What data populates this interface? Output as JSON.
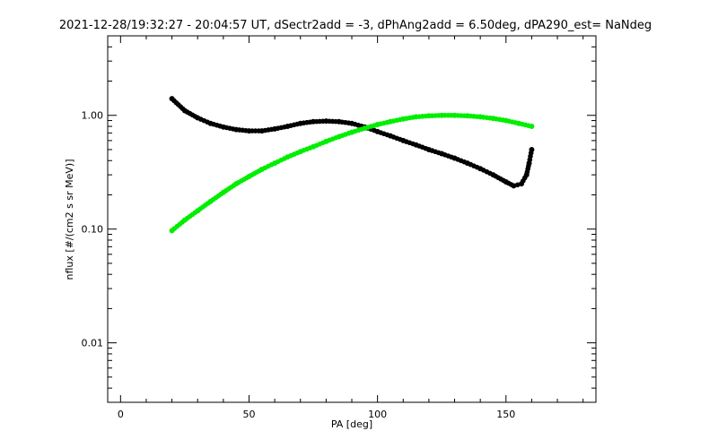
{
  "chart_data": {
    "type": "scatter",
    "title": "2021-12-28/19:32:27 - 20:04:57 UT, dSectr2add = -3, dPhAng2add = 6.50deg, dPA290_est=   NaNdeg",
    "xlabel": "PA [deg]",
    "ylabel": "nflux [#/(cm2 s sr MeV)]",
    "xlim": [
      -5,
      185
    ],
    "ylim": [
      0.003,
      5.0
    ],
    "yscale": "log",
    "grid": false,
    "xticks": [
      {
        "value": 0,
        "label": "0"
      },
      {
        "value": 50,
        "label": "50"
      },
      {
        "value": 100,
        "label": "100"
      },
      {
        "value": 150,
        "label": "150"
      }
    ],
    "yticks": [
      {
        "value": 0.01,
        "label": "0.01"
      },
      {
        "value": 0.1,
        "label": "0.10"
      },
      {
        "value": 1.0,
        "label": "1.00"
      }
    ],
    "series": [
      {
        "color": "#000000",
        "x": [
          20,
          25,
          30,
          35,
          40,
          45,
          50,
          55,
          60,
          65,
          70,
          75,
          80,
          85,
          90,
          95,
          100,
          105,
          110,
          115,
          120,
          125,
          130,
          135,
          140,
          145,
          150,
          153,
          156,
          158,
          159,
          160
        ],
        "y": [
          1.4,
          1.1,
          0.95,
          0.85,
          0.79,
          0.75,
          0.73,
          0.73,
          0.76,
          0.8,
          0.85,
          0.88,
          0.89,
          0.88,
          0.85,
          0.79,
          0.72,
          0.66,
          0.6,
          0.55,
          0.5,
          0.46,
          0.42,
          0.38,
          0.34,
          0.3,
          0.26,
          0.24,
          0.25,
          0.3,
          0.38,
          0.5
        ]
      },
      {
        "color": "#00ee00",
        "x": [
          20,
          25,
          30,
          35,
          40,
          45,
          50,
          55,
          60,
          65,
          70,
          75,
          80,
          85,
          90,
          95,
          100,
          105,
          110,
          115,
          120,
          125,
          130,
          135,
          140,
          145,
          150,
          155,
          160
        ],
        "y": [
          0.097,
          0.12,
          0.145,
          0.175,
          0.21,
          0.25,
          0.29,
          0.335,
          0.38,
          0.43,
          0.48,
          0.53,
          0.59,
          0.65,
          0.71,
          0.77,
          0.83,
          0.88,
          0.93,
          0.97,
          0.99,
          1.0,
          1.0,
          0.99,
          0.97,
          0.94,
          0.9,
          0.85,
          0.8
        ]
      }
    ]
  }
}
